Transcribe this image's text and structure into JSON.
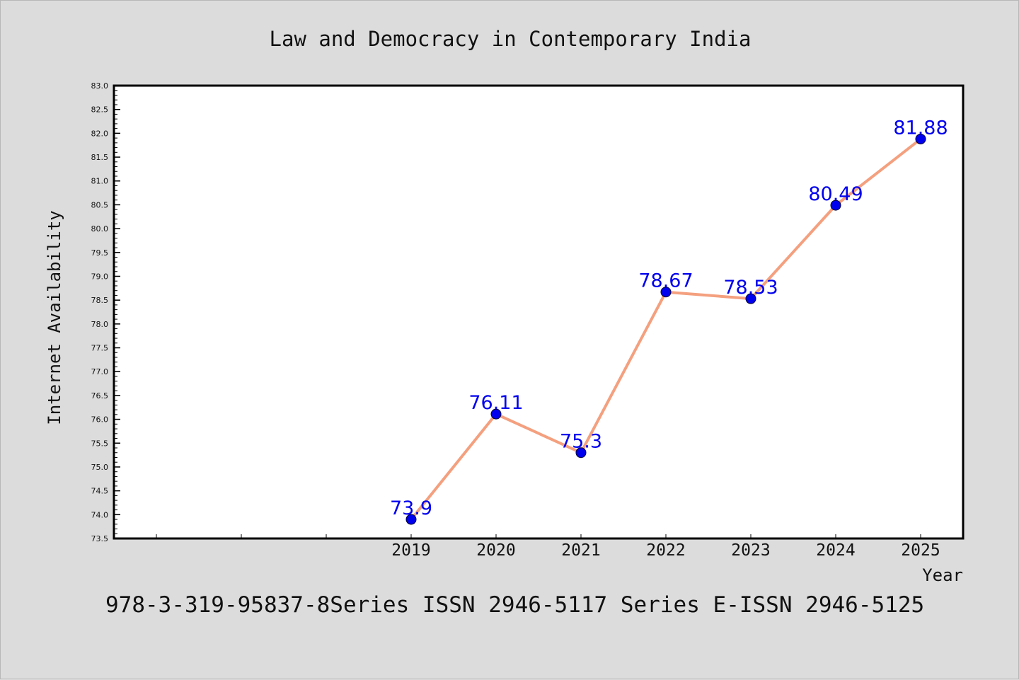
{
  "colors": {
    "background": "#dcdcdc",
    "plot_background": "#ffffff",
    "line": "#f4a07f",
    "marker": "#0000ee",
    "label": "#0000ee",
    "axis": "#000000",
    "text": "#111111"
  },
  "footer": {
    "text": "978-3-319-95837-8Series ISSN 2946-5117 Series E-ISSN 2946-5125"
  },
  "chart_data": {
    "type": "line",
    "title": "Law and Democracy in Contemporary India",
    "xlabel": "Year",
    "ylabel": "Internet Availability",
    "x": [
      2019,
      2020,
      2021,
      2022,
      2023,
      2024,
      2025
    ],
    "x_tick_labels": [
      "2019",
      "2020",
      "2021",
      "2022",
      "2023",
      "2024",
      "2025"
    ],
    "xlim": [
      2015.5,
      2025.5
    ],
    "series": [
      {
        "values": [
          73.9,
          76.11,
          75.3,
          78.67,
          78.53,
          80.49,
          81.88
        ],
        "labels": [
          "73.9",
          "76.11",
          "75.3",
          "78.67",
          "78.53",
          "80.49",
          "81.88"
        ]
      }
    ],
    "ylim": [
      73.5,
      83.0
    ],
    "y_ticks": [
      73.5,
      74.0,
      74.5,
      75.0,
      75.5,
      76.0,
      76.5,
      77.0,
      77.5,
      78.0,
      78.5,
      79.0,
      79.5,
      80.0,
      80.5,
      81.0,
      81.5,
      82.0,
      82.5,
      83.0
    ],
    "y_tick_labels": [
      "73.5",
      "74.0",
      "74.5",
      "75.0",
      "75.5",
      "76.0",
      "76.5",
      "77.0",
      "77.5",
      "78.0",
      "78.5",
      "79.0",
      "79.5",
      "80.0",
      "80.5",
      "81.0",
      "81.5",
      "82.0",
      "82.5",
      "83.0"
    ],
    "grid": false,
    "legend": "none"
  }
}
